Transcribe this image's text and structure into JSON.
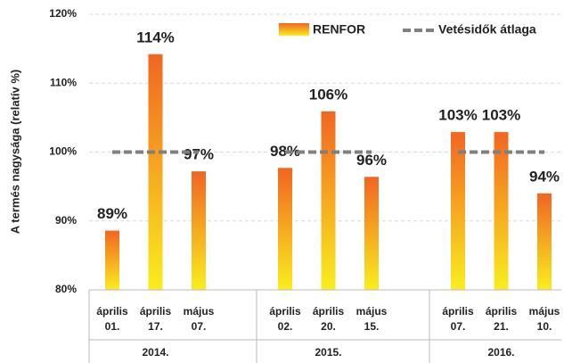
{
  "chart_data": {
    "type": "bar",
    "y_label": "A termés nagysága (relatív %)",
    "ylim": [
      80,
      120
    ],
    "yticks": [
      {
        "value": 80,
        "label": "80%"
      },
      {
        "value": 90,
        "label": "90%"
      },
      {
        "value": 100,
        "label": "100%"
      },
      {
        "value": 110,
        "label": "110%"
      },
      {
        "value": 120,
        "label": "120%"
      }
    ],
    "grid": true,
    "series": [
      {
        "name": "RENFOR",
        "colors": [
          "#f9ee1e",
          "#f26522"
        ]
      },
      {
        "name": "Vetésidők átlaga",
        "color": "#808080"
      }
    ],
    "value_label_color": "#d64133",
    "groups": [
      {
        "name": "2014.",
        "categories": [
          [
            "április",
            "01."
          ],
          [
            "április",
            "17."
          ],
          [
            "május",
            "07."
          ]
        ],
        "values": [
          88.6,
          114.2,
          97.2
        ],
        "value_labels": [
          "89%",
          "114%",
          "97%"
        ],
        "average": 100
      },
      {
        "name": "2015.",
        "categories": [
          [
            "április",
            "02."
          ],
          [
            "április",
            "20."
          ],
          [
            "május",
            "15."
          ]
        ],
        "values": [
          97.7,
          105.9,
          96.4
        ],
        "value_labels": [
          "98%",
          "106%",
          "96%"
        ],
        "average": 100
      },
      {
        "name": "2016.",
        "categories": [
          [
            "április",
            "07."
          ],
          [
            "április",
            "21."
          ],
          [
            "május",
            "10."
          ]
        ],
        "values": [
          102.9,
          102.9,
          94.0
        ],
        "value_labels": [
          "103%",
          "103%",
          "94%"
        ],
        "average": 100
      }
    ]
  }
}
